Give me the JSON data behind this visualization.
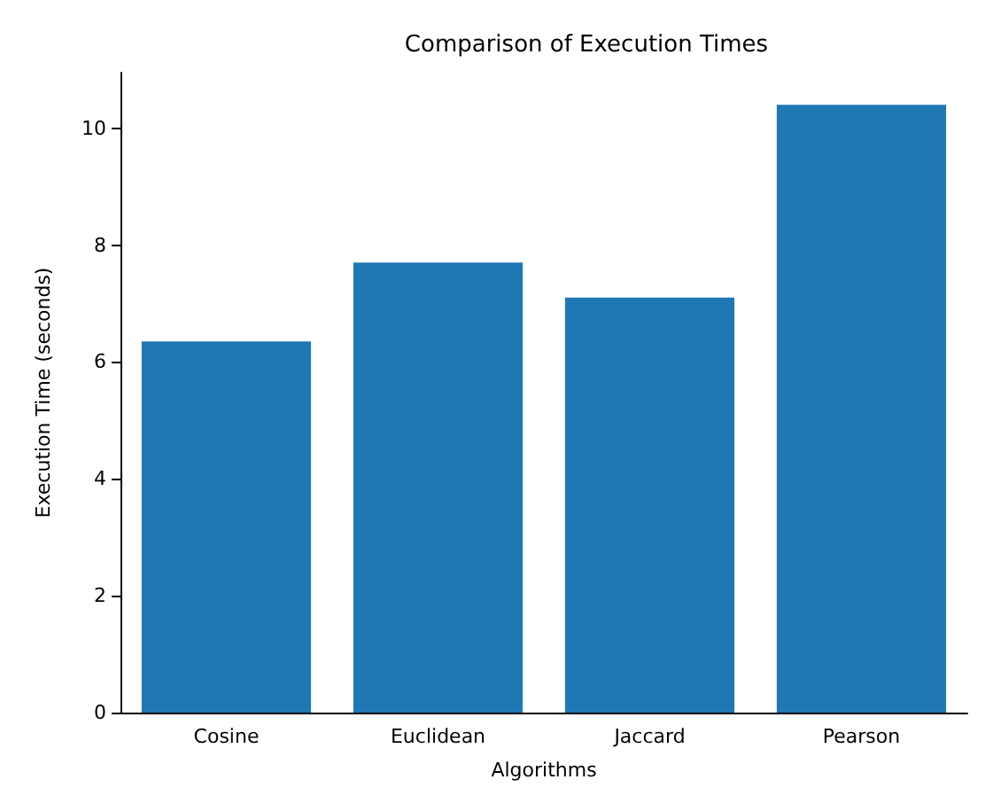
{
  "chart_data": {
    "type": "bar",
    "title": "Comparison of Execution Times",
    "xlabel": "Algorithms",
    "ylabel": "Execution Time (seconds)",
    "categories": [
      "Cosine",
      "Euclidean",
      "Jaccard",
      "Pearson"
    ],
    "values": [
      6.35,
      7.7,
      7.1,
      10.4
    ],
    "color": "#1f77b4",
    "ylim": [
      0,
      10.95
    ],
    "yticks": [
      0,
      2,
      4,
      6,
      8,
      10
    ],
    "grid": false
  }
}
